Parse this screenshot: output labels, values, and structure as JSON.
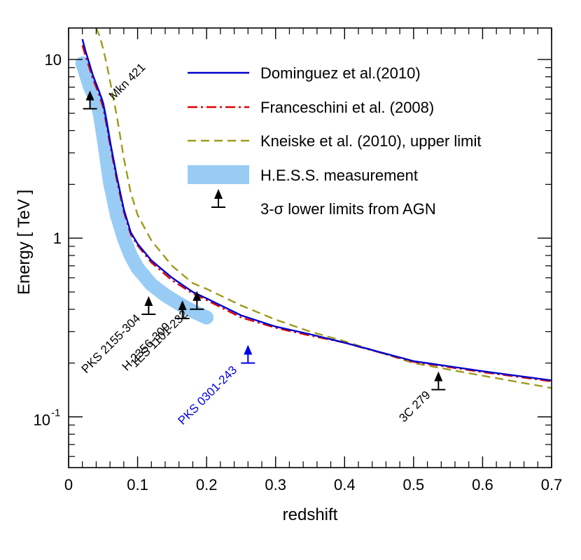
{
  "chart_data": {
    "type": "line",
    "title": "",
    "xlabel": "redshift",
    "ylabel": "Energy  [ TeV ]",
    "xlim": [
      0,
      0.7
    ],
    "ylim": [
      0.052,
      15
    ],
    "yscale": "log",
    "grid": false,
    "legend_position": "top-right",
    "x_ticks": [
      {
        "value": 0,
        "label": "0"
      },
      {
        "value": 0.1,
        "label": "0.1"
      },
      {
        "value": 0.2,
        "label": "0.2"
      },
      {
        "value": 0.3,
        "label": "0.3"
      },
      {
        "value": 0.4,
        "label": "0.4"
      },
      {
        "value": 0.5,
        "label": "0.5"
      },
      {
        "value": 0.6,
        "label": "0.6"
      },
      {
        "value": 0.7,
        "label": "0.7"
      }
    ],
    "y_ticks": [
      {
        "value": 10,
        "label": "10"
      },
      {
        "value": 1,
        "label": "1"
      },
      {
        "value": 0.1,
        "label": "10",
        "exponent": "-1"
      }
    ],
    "series": [
      {
        "name": "Dominguez et al.(2010)",
        "style": "solid",
        "color": "#0000cc",
        "x": [
          0.02,
          0.025,
          0.03,
          0.035,
          0.04,
          0.045,
          0.05,
          0.055,
          0.06,
          0.07,
          0.08,
          0.09,
          0.1,
          0.12,
          0.15,
          0.18,
          0.2,
          0.25,
          0.3,
          0.35,
          0.4,
          0.5,
          0.6,
          0.7
        ],
        "y": [
          13,
          11,
          9.5,
          8.2,
          7.3,
          6.5,
          5.7,
          4.5,
          3.5,
          2.2,
          1.45,
          1.08,
          0.93,
          0.75,
          0.6,
          0.5,
          0.46,
          0.37,
          0.32,
          0.29,
          0.26,
          0.205,
          0.18,
          0.16
        ]
      },
      {
        "name": "Franceschini et al. (2008)",
        "style": "dashdot",
        "color": "#e00000",
        "x": [
          0.02,
          0.025,
          0.03,
          0.035,
          0.04,
          0.045,
          0.05,
          0.055,
          0.06,
          0.07,
          0.08,
          0.09,
          0.1,
          0.12,
          0.15,
          0.18,
          0.2,
          0.25,
          0.3,
          0.35,
          0.4,
          0.5,
          0.6,
          0.7
        ],
        "y": [
          12,
          10.3,
          9,
          7.8,
          7,
          6.2,
          5.4,
          4.3,
          3.35,
          2.1,
          1.4,
          1.05,
          0.91,
          0.73,
          0.58,
          0.49,
          0.45,
          0.36,
          0.315,
          0.285,
          0.26,
          0.203,
          0.178,
          0.158
        ]
      },
      {
        "name": "Kneiske et al. (2010), upper limit",
        "style": "dashed",
        "color": "#a09a1a",
        "x": [
          0.04,
          0.045,
          0.05,
          0.055,
          0.06,
          0.07,
          0.08,
          0.09,
          0.1,
          0.12,
          0.15,
          0.18,
          0.2,
          0.25,
          0.3,
          0.35,
          0.4,
          0.5,
          0.6,
          0.7
        ],
        "y": [
          15,
          13.5,
          11.5,
          9.5,
          7.6,
          4.8,
          2.8,
          1.8,
          1.35,
          0.97,
          0.7,
          0.56,
          0.52,
          0.42,
          0.35,
          0.3,
          0.265,
          0.2,
          0.17,
          0.145
        ]
      }
    ],
    "band": {
      "name": "H.E.S.S. measurement",
      "color": "#99ccf5",
      "x": [
        0.02,
        0.025,
        0.03,
        0.035,
        0.04,
        0.045,
        0.05,
        0.055,
        0.06,
        0.07,
        0.08,
        0.09,
        0.1,
        0.12,
        0.14,
        0.16,
        0.18,
        0.2
      ],
      "y": [
        9.5,
        8.3,
        7.2,
        6.5,
        5.9,
        5.0,
        3.8,
        2.8,
        2.05,
        1.35,
        1.0,
        0.8,
        0.68,
        0.55,
        0.48,
        0.43,
        0.39,
        0.36
      ]
    },
    "lower_limits": {
      "name": "3-σ lower limits from AGN",
      "points": [
        {
          "label": "Mkn 421",
          "z": 0.031,
          "E": 5.3,
          "color": "#000000"
        },
        {
          "label": "PKS 2155-304",
          "z": 0.116,
          "E": 0.375,
          "color": "#000000"
        },
        {
          "label": "H 2356-309",
          "z": 0.165,
          "E": 0.355,
          "color": "#000000"
        },
        {
          "label": "1ES 1101-232",
          "z": 0.186,
          "E": 0.4,
          "color": "#000000"
        },
        {
          "label": "PKS 0301-243",
          "z": 0.26,
          "E": 0.2,
          "color": "#0000ee"
        },
        {
          "label": "3C 279",
          "z": 0.536,
          "E": 0.142,
          "color": "#000000"
        }
      ]
    },
    "legend": [
      {
        "label": "Dominguez et al.(2010)",
        "kind": "solid"
      },
      {
        "label": "Franceschini et al. (2008)",
        "kind": "dashdot"
      },
      {
        "label": "Kneiske et al. (2010), upper limit",
        "kind": "dashed"
      },
      {
        "label": "H.E.S.S. measurement",
        "kind": "band"
      },
      {
        "label": "3-σ lower limits from AGN",
        "kind": "arrow"
      }
    ]
  }
}
